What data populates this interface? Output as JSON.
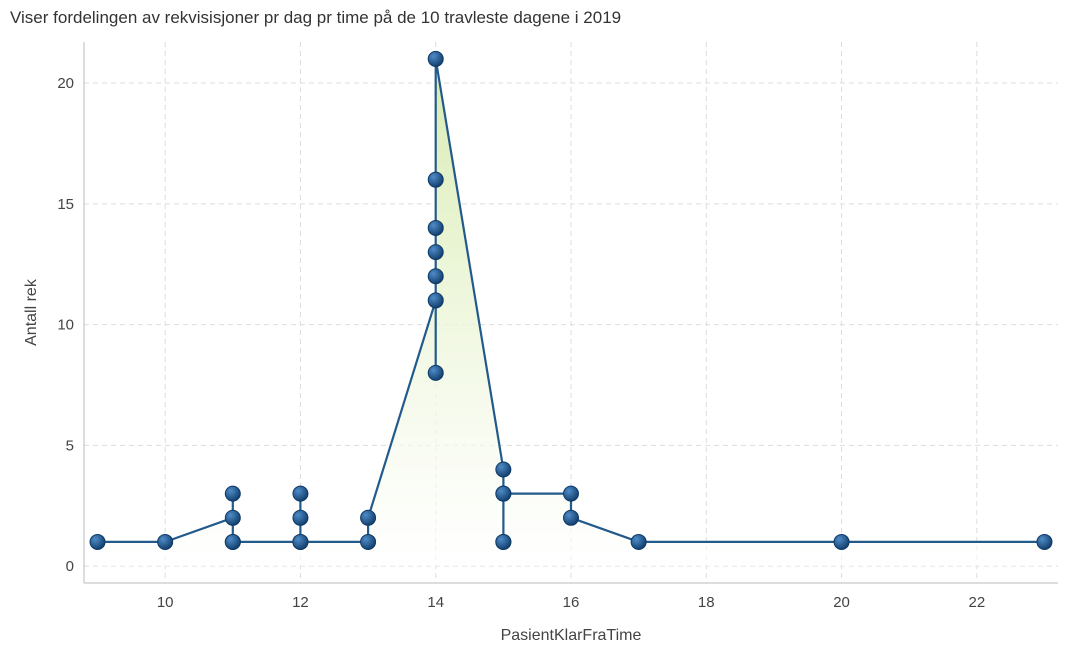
{
  "chart_data": {
    "type": "line",
    "title": "Viser fordelingen av rekvisisjoner pr dag pr time på de 10 travleste dagene i 2019",
    "xlabel": "PasientKlarFraTime",
    "ylabel": "Antall rek",
    "xlim": [
      8.8,
      23.2
    ],
    "ylim": [
      -0.7,
      21.7
    ],
    "xticks": [
      10,
      12,
      14,
      16,
      18,
      20,
      22
    ],
    "yticks": [
      0,
      5,
      10,
      15,
      20
    ],
    "grid": true,
    "fill": "area-gradient",
    "colors": {
      "line": "#235a8c",
      "marker": "#1f5a96",
      "fill": "#d8ecb0"
    },
    "points": [
      {
        "x": 9,
        "y": 1
      },
      {
        "x": 10,
        "y": 1
      },
      {
        "x": 11,
        "y": 2
      },
      {
        "x": 11,
        "y": 3
      },
      {
        "x": 11,
        "y": 1
      },
      {
        "x": 11,
        "y": 1
      },
      {
        "x": 12,
        "y": 1
      },
      {
        "x": 12,
        "y": 2
      },
      {
        "x": 12,
        "y": 3
      },
      {
        "x": 12,
        "y": 1
      },
      {
        "x": 13,
        "y": 1
      },
      {
        "x": 13,
        "y": 2
      },
      {
        "x": 14,
        "y": 11
      },
      {
        "x": 14,
        "y": 8
      },
      {
        "x": 14,
        "y": 12
      },
      {
        "x": 14,
        "y": 13
      },
      {
        "x": 14,
        "y": 14
      },
      {
        "x": 14,
        "y": 16
      },
      {
        "x": 14,
        "y": 21
      },
      {
        "x": 15,
        "y": 4
      },
      {
        "x": 15,
        "y": 3
      },
      {
        "x": 15,
        "y": 1
      },
      {
        "x": 15,
        "y": 1
      },
      {
        "x": 15,
        "y": 3
      },
      {
        "x": 16,
        "y": 3
      },
      {
        "x": 16,
        "y": 2
      },
      {
        "x": 17,
        "y": 1
      },
      {
        "x": 20,
        "y": 1
      },
      {
        "x": 23,
        "y": 1
      }
    ]
  }
}
